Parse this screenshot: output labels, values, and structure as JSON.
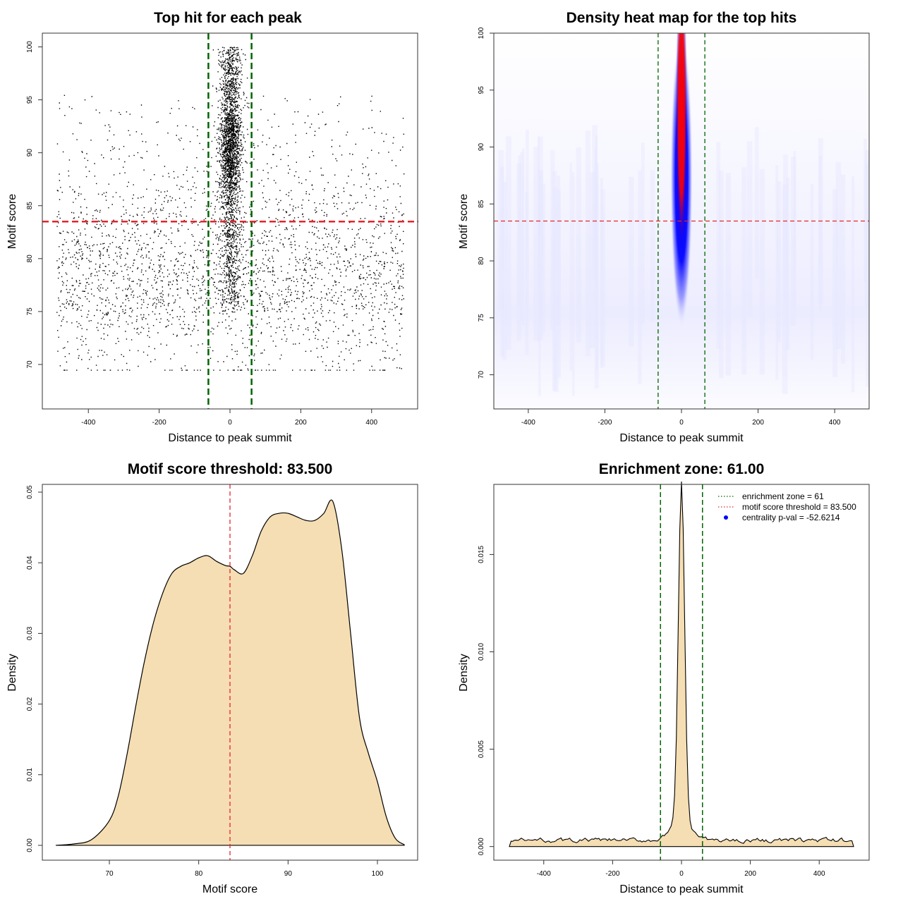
{
  "colors": {
    "points": "#000000",
    "threshold_line": "#e3262c",
    "zone_line": "#006400",
    "density_fill": "#f5deb3",
    "heat_low": "#ffffff",
    "heat_mid": "#0000ff",
    "heat_high": "#ff0000",
    "legend_point": "#0000ff"
  },
  "chart_data": [
    {
      "id": "scatter",
      "type": "scatter",
      "title": "Top hit for each peak",
      "xlabel": "Distance to peak summit",
      "ylabel": "Motif score",
      "xlim": [
        -530,
        530
      ],
      "ylim": [
        65.8,
        101.3
      ],
      "xticks": [
        -400,
        -200,
        0,
        200,
        400
      ],
      "yticks": [
        70,
        75,
        80,
        85,
        90,
        95,
        100
      ],
      "threshold": 83.5,
      "enrichment_zone": [
        -61,
        61
      ],
      "n_background_points": 2600,
      "n_central_points": 2600,
      "central_sd": 15,
      "x_range": [
        -490,
        490
      ],
      "score_range": [
        67,
        100
      ]
    },
    {
      "id": "heatmap",
      "type": "heatmap",
      "title": "Density heat map for the top hits",
      "xlabel": "Distance to peak summit",
      "ylabel": "Motif score",
      "xlim": [
        -490,
        490
      ],
      "ylim": [
        67,
        100
      ],
      "xticks": [
        -400,
        -200,
        0,
        200,
        400
      ],
      "yticks": [
        70,
        75,
        80,
        85,
        90,
        95,
        100
      ],
      "threshold": 83.5,
      "enrichment_zone": [
        -61,
        61
      ],
      "peak_center": [
        0,
        94
      ]
    },
    {
      "id": "score_density",
      "type": "area",
      "title": "Motif score threshold: 83.500",
      "xlabel": "Motif score",
      "ylabel": "Density",
      "xlim": [
        62.5,
        104.5
      ],
      "ylim": [
        -0.0021,
        0.0511
      ],
      "xticks": [
        70,
        80,
        90,
        100
      ],
      "yticks": [
        0.0,
        0.01,
        0.02,
        0.03,
        0.04,
        0.05
      ],
      "ytick_labels": [
        "0.00",
        "0.01",
        "0.02",
        "0.03",
        "0.04",
        "0.05"
      ],
      "threshold": 83.5,
      "x": [
        64,
        66,
        68,
        70,
        71,
        72,
        73,
        74,
        75,
        76,
        77,
        78,
        79,
        80,
        81,
        82,
        83,
        83.5,
        84,
        85,
        86,
        87,
        88,
        89,
        90,
        91,
        92,
        93,
        94,
        95,
        96,
        97,
        98,
        99,
        100,
        101,
        102,
        103
      ],
      "y": [
        0.0,
        0.0002,
        0.0008,
        0.0035,
        0.007,
        0.013,
        0.02,
        0.0265,
        0.0318,
        0.0358,
        0.0385,
        0.0395,
        0.04,
        0.0407,
        0.041,
        0.0402,
        0.0396,
        0.0395,
        0.039,
        0.0385,
        0.041,
        0.0445,
        0.0465,
        0.047,
        0.047,
        0.0465,
        0.046,
        0.046,
        0.047,
        0.0487,
        0.042,
        0.03,
        0.018,
        0.013,
        0.009,
        0.004,
        0.001,
        0.0001
      ]
    },
    {
      "id": "distance_density",
      "type": "area",
      "title": "Enrichment zone: 61.00",
      "xlabel": "Distance to peak summit",
      "ylabel": "Density",
      "xlim": [
        -545,
        545
      ],
      "ylim": [
        -0.0007,
        0.0186
      ],
      "xticks": [
        -400,
        -200,
        0,
        200,
        400
      ],
      "yticks": [
        0.0,
        0.005,
        0.01,
        0.015
      ],
      "ytick_labels": [
        "0.000",
        "0.005",
        "0.010",
        "0.015"
      ],
      "enrichment_zone": [
        -61,
        61
      ],
      "baseline_density": 0.00032,
      "peak_density": 0.0179,
      "peak_sd": 9,
      "x_range": [
        -500,
        500
      ],
      "legend": [
        {
          "label": "enrichment zone = 61",
          "style": "dotted-green"
        },
        {
          "label": "motif score threshold = 83.500",
          "style": "dotted-red"
        },
        {
          "label": "centrality p-val = -52.6214",
          "style": "point-blue"
        }
      ]
    }
  ]
}
